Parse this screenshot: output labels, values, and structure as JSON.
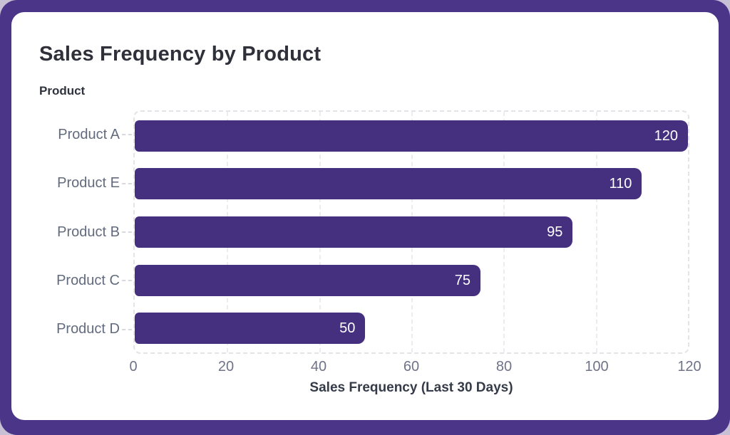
{
  "page": {
    "background_color": "#c8c1d6",
    "frame_color": "#4a3589",
    "card_color": "#ffffff"
  },
  "header": {
    "title": "Sales Frequency by Product",
    "y_axis_title": "Product"
  },
  "chart_data": {
    "type": "bar",
    "orientation": "horizontal",
    "title": "Sales Frequency by Product",
    "ylabel": "Product",
    "xlabel": "Sales Frequency (Last 30 Days)",
    "categories": [
      "Product A",
      "Product E",
      "Product B",
      "Product C",
      "Product D"
    ],
    "values": [
      120,
      110,
      95,
      75,
      50
    ],
    "xlim": [
      0,
      120
    ],
    "x_ticks": [
      0,
      20,
      40,
      60,
      80,
      100,
      120
    ],
    "grid": "dashed-vertical-gridlines",
    "legend": "none",
    "bar_color": "#44307f",
    "value_label_color": "#ffffff",
    "value_label_position": "inside-end"
  }
}
